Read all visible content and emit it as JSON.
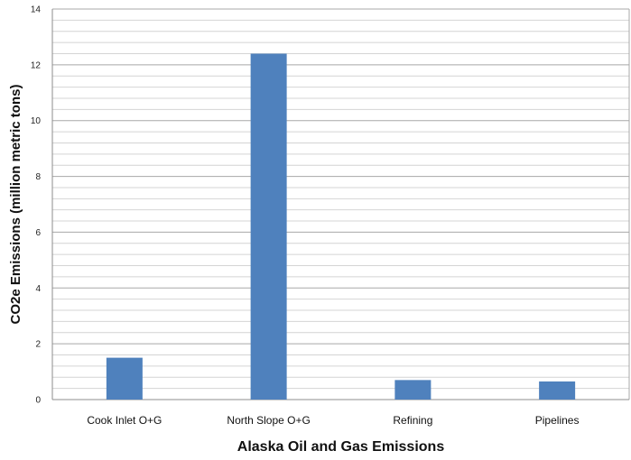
{
  "chart_data": {
    "type": "bar",
    "categories": [
      "Cook Inlet O+G",
      "North Slope O+G",
      "Refining",
      "Pipelines"
    ],
    "values": [
      1.5,
      12.4,
      0.7,
      0.65
    ],
    "xlabel": "Alaska Oil and Gas Emissions",
    "ylabel": "CO2e Emissions  (million metric tons)",
    "ylim": [
      0,
      14
    ],
    "yticks": [
      0,
      2,
      4,
      6,
      8,
      10,
      12,
      14
    ],
    "grid": true,
    "bar_color": "#4F81BD"
  }
}
